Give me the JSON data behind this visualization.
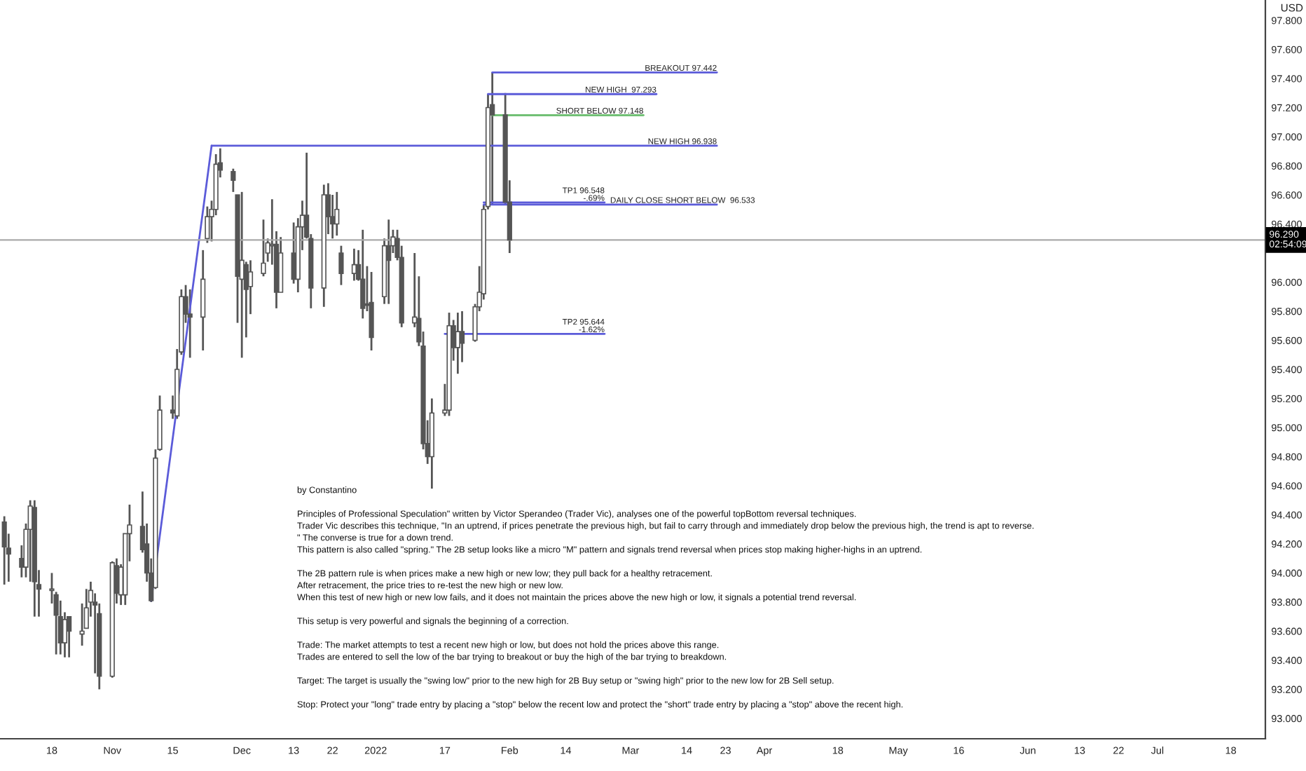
{
  "chart_data": {
    "type": "candlestick",
    "ylabel": "USD",
    "x": [
      "2021-10-07",
      "2021-10-08",
      "2021-10-11",
      "2021-10-12",
      "2021-10-13",
      "2021-10-14",
      "2021-10-15",
      "2021-10-18",
      "2021-10-19",
      "2021-10-20",
      "2021-10-21",
      "2021-10-22",
      "2021-10-25",
      "2021-10-26",
      "2021-10-27",
      "2021-10-28",
      "2021-10-29",
      "2021-11-01",
      "2021-11-02",
      "2021-11-03",
      "2021-11-04",
      "2021-11-05",
      "2021-11-08",
      "2021-11-09",
      "2021-11-10",
      "2021-11-11",
      "2021-11-12",
      "2021-11-15",
      "2021-11-16",
      "2021-11-17",
      "2021-11-18",
      "2021-11-19",
      "2021-11-22",
      "2021-11-23",
      "2021-11-24",
      "2021-11-25",
      "2021-11-26",
      "2021-11-29",
      "2021-11-30",
      "2021-12-01",
      "2021-12-02",
      "2021-12-03",
      "2021-12-06",
      "2021-12-07",
      "2021-12-08",
      "2021-12-09",
      "2021-12-10",
      "2021-12-13",
      "2021-12-14",
      "2021-12-15",
      "2021-12-16",
      "2021-12-17",
      "2021-12-20",
      "2021-12-21",
      "2021-12-22",
      "2021-12-23",
      "2021-12-24",
      "2021-12-27",
      "2021-12-28",
      "2021-12-29",
      "2021-12-30",
      "2021-12-31",
      "2022-01-03",
      "2022-01-04",
      "2022-01-05",
      "2022-01-06",
      "2022-01-07",
      "2022-01-10",
      "2022-01-11",
      "2022-01-12",
      "2022-01-13",
      "2022-01-14",
      "2022-01-17",
      "2022-01-18",
      "2022-01-19",
      "2022-01-20",
      "2022-01-21",
      "2022-01-24",
      "2022-01-25",
      "2022-01-26",
      "2022-01-27",
      "2022-01-28",
      "2022-01-31",
      "2022-02-01"
    ],
    "ohlc": [
      [
        94.35,
        94.39,
        93.92,
        94.18
      ],
      [
        94.17,
        94.27,
        93.94,
        94.13
      ],
      [
        94.1,
        94.19,
        93.97,
        94.04
      ],
      [
        94.04,
        94.34,
        93.97,
        94.3
      ],
      [
        94.3,
        94.5,
        93.94,
        94.46
      ],
      [
        94.45,
        94.5,
        93.7,
        93.94
      ],
      [
        93.92,
        94.02,
        93.7,
        93.89
      ],
      [
        93.88,
        94.0,
        93.79,
        93.89
      ],
      [
        93.85,
        93.87,
        93.44,
        93.71
      ],
      [
        93.7,
        93.81,
        93.44,
        93.52
      ],
      [
        93.52,
        93.73,
        93.42,
        93.68
      ],
      [
        93.7,
        93.7,
        93.42,
        93.6
      ],
      [
        93.58,
        93.79,
        93.5,
        93.6
      ],
      [
        93.62,
        93.89,
        93.62,
        93.76
      ],
      [
        93.8,
        93.94,
        93.7,
        93.88
      ],
      [
        93.8,
        93.86,
        93.31,
        93.78
      ],
      [
        93.72,
        93.79,
        93.2,
        93.29
      ],
      [
        93.29,
        94.08,
        93.28,
        94.07
      ],
      [
        94.05,
        94.1,
        93.79,
        93.86
      ],
      [
        93.85,
        94.06,
        93.78,
        94.04
      ],
      [
        93.85,
        94.27,
        93.78,
        94.27
      ],
      [
        94.27,
        94.47,
        94.08,
        94.33
      ],
      [
        94.32,
        94.56,
        94.14,
        94.16
      ],
      [
        94.2,
        94.34,
        93.94,
        94.0
      ],
      [
        94.0,
        94.1,
        93.8,
        93.81
      ],
      [
        93.9,
        94.85,
        93.89,
        94.79
      ],
      [
        94.85,
        95.22,
        94.84,
        95.12
      ],
      [
        95.12,
        95.22,
        95.06,
        95.1
      ],
      [
        95.08,
        95.54,
        95.06,
        95.4
      ],
      [
        95.52,
        95.95,
        95.5,
        95.9
      ],
      [
        95.9,
        95.98,
        95.72,
        95.78
      ],
      [
        95.78,
        95.95,
        95.48,
        95.76
      ],
      [
        95.76,
        96.22,
        95.53,
        96.02
      ],
      [
        96.3,
        96.52,
        96.27,
        96.45
      ],
      [
        96.45,
        96.56,
        96.28,
        96.5
      ],
      [
        96.5,
        96.88,
        96.46,
        96.81
      ],
      [
        96.82,
        96.92,
        96.72,
        96.77
      ],
      [
        96.76,
        96.78,
        96.62,
        96.7
      ],
      [
        96.6,
        96.6,
        95.72,
        96.04
      ],
      [
        96.02,
        96.62,
        95.48,
        96.15
      ],
      [
        96.12,
        96.14,
        95.62,
        95.95
      ],
      [
        95.97,
        96.15,
        95.78,
        96.07
      ],
      [
        96.06,
        96.43,
        96.04,
        96.13
      ],
      [
        96.2,
        96.3,
        96.14,
        96.27
      ],
      [
        96.25,
        96.57,
        96.12,
        96.26
      ],
      [
        96.26,
        96.35,
        95.82,
        95.93
      ],
      [
        95.93,
        96.31,
        95.93,
        96.2
      ],
      [
        96.2,
        96.41,
        95.99,
        96.02
      ],
      [
        96.02,
        96.44,
        95.93,
        96.38
      ],
      [
        96.38,
        96.56,
        96.22,
        96.46
      ],
      [
        96.46,
        96.89,
        96.3,
        96.31
      ],
      [
        96.3,
        96.33,
        95.82,
        95.96
      ],
      [
        95.96,
        96.67,
        95.83,
        96.6
      ],
      [
        96.6,
        96.68,
        96.33,
        96.45
      ],
      [
        96.45,
        96.6,
        96.3,
        96.4
      ],
      [
        96.4,
        96.62,
        96.32,
        96.5
      ],
      [
        96.2,
        96.25,
        95.98,
        96.06
      ],
      [
        96.06,
        96.23,
        96.01,
        96.12
      ],
      [
        96.12,
        96.22,
        96.01,
        96.02
      ],
      [
        96.02,
        96.36,
        95.75,
        95.82
      ],
      [
        95.85,
        96.11,
        95.8,
        95.84
      ],
      [
        95.86,
        96.07,
        95.53,
        95.62
      ],
      [
        95.9,
        96.3,
        95.85,
        96.25
      ],
      [
        96.25,
        96.43,
        95.85,
        96.15
      ],
      [
        96.25,
        96.36,
        96.2,
        96.31
      ],
      [
        96.3,
        96.36,
        96.15,
        96.17
      ],
      [
        96.17,
        96.25,
        95.69,
        95.72
      ],
      [
        95.72,
        96.2,
        95.69,
        95.76
      ],
      [
        95.75,
        96.04,
        95.56,
        95.59
      ],
      [
        95.56,
        95.66,
        94.85,
        94.89
      ],
      [
        94.89,
        95.05,
        94.75,
        94.8
      ],
      [
        94.8,
        95.2,
        94.58,
        95.1
      ],
      [
        95.1,
        95.3,
        95.08,
        95.12
      ],
      [
        95.12,
        95.79,
        95.08,
        95.7
      ],
      [
        95.7,
        95.74,
        95.46,
        95.55
      ],
      [
        95.55,
        95.79,
        95.37,
        95.66
      ],
      [
        95.66,
        95.8,
        95.45,
        95.58
      ],
      [
        95.6,
        95.85,
        95.59,
        95.83
      ],
      [
        95.83,
        96.11,
        95.8,
        95.93
      ],
      [
        95.92,
        96.53,
        95.88,
        96.5
      ],
      [
        96.52,
        97.29,
        96.5,
        97.2
      ],
      [
        97.22,
        97.442,
        96.53,
        97.15
      ],
      [
        97.15,
        97.3,
        96.53,
        96.55
      ],
      [
        96.55,
        96.7,
        96.2,
        96.29
      ]
    ],
    "color": "#555555",
    "series": [
      {
        "type": "line",
        "color": "#5b5bd9",
        "x": [
          "2021-11-10",
          "2021-11-24"
        ],
        "values": [
          93.81,
          96.938
        ]
      },
      {
        "type": "line",
        "name": "NEW HIGH 96.938",
        "color": "#5b5bd9",
        "x": [
          "2021-11-24",
          "2022-03-21"
        ],
        "values": [
          96.938,
          96.938
        ]
      },
      {
        "type": "line",
        "name": "BREAKOUT 97.442",
        "color": "#5b5bd9",
        "x": [
          "2022-01-28",
          "2022-03-21"
        ],
        "values": [
          97.442,
          97.442
        ]
      },
      {
        "type": "line",
        "name": "NEW HIGH  97.293",
        "color": "#5b5bd9",
        "x": [
          "2022-01-27",
          "2022-03-07"
        ],
        "values": [
          97.293,
          97.293
        ]
      },
      {
        "type": "line",
        "name": "SHORT BELOW 97.148",
        "color": "#66bb6a",
        "x": [
          "2022-01-28",
          "2022-03-04"
        ],
        "values": [
          97.148,
          97.148
        ]
      },
      {
        "type": "line",
        "name": "DAILY CLOSE SHORT BELOW  96.533",
        "color": "#5b5bd9",
        "x": [
          "2022-01-26",
          "2022-03-21"
        ],
        "values": [
          96.533,
          96.533
        ]
      },
      {
        "type": "line",
        "name": "TP1 96.548\n-.69%",
        "color": "#5b5bd9",
        "x": [
          "2022-01-26",
          "2022-02-23"
        ],
        "values": [
          96.548,
          96.548
        ]
      },
      {
        "type": "line",
        "name": "TP2 95.644\n-1.62%",
        "color": "#5b5bd9",
        "x": [
          "2022-01-17",
          "2022-02-23"
        ],
        "values": [
          95.644,
          95.644
        ]
      }
    ],
    "ref_lines": [
      {
        "axis": "y",
        "value": 96.29,
        "label": "96.290\n02:54:09",
        "color": "#aaaaaa"
      }
    ],
    "xlim": [
      "2021-10-06",
      "2022-07-26"
    ],
    "xticks": [
      {
        "value": "2021-10-18",
        "label": "18"
      },
      {
        "value": "2021-11-01",
        "label": "Nov"
      },
      {
        "value": "2021-11-15",
        "label": "15"
      },
      {
        "value": "2021-12-01",
        "label": "Dec"
      },
      {
        "value": "2021-12-13",
        "label": "13"
      },
      {
        "value": "2021-12-22",
        "label": "22"
      },
      {
        "value": "2022-01-01",
        "label": "2022"
      },
      {
        "value": "2022-01-17",
        "label": "17"
      },
      {
        "value": "2022-02-01",
        "label": "Feb"
      },
      {
        "value": "2022-02-14",
        "label": "14"
      },
      {
        "value": "2022-03-01",
        "label": "Mar"
      },
      {
        "value": "2022-03-14",
        "label": "14"
      },
      {
        "value": "2022-03-23",
        "label": "23"
      },
      {
        "value": "2022-04-01",
        "label": "Apr"
      },
      {
        "value": "2022-04-18",
        "label": "18"
      },
      {
        "value": "2022-05-02",
        "label": "May"
      },
      {
        "value": "2022-05-16",
        "label": "16"
      },
      {
        "value": "2022-06-01",
        "label": "Jun"
      },
      {
        "value": "2022-06-13",
        "label": "13"
      },
      {
        "value": "2022-06-22",
        "label": "22"
      },
      {
        "value": "2022-07-01",
        "label": "Jul"
      },
      {
        "value": "2022-07-18",
        "label": "18"
      }
    ],
    "ylim": [
      92.86,
      97.94
    ],
    "yticks": [
      {
        "value": 93,
        "label": "93.000"
      },
      {
        "value": 93.2,
        "label": "93.200"
      },
      {
        "value": 93.4,
        "label": "93.400"
      },
      {
        "value": 93.6,
        "label": "93.600"
      },
      {
        "value": 93.8,
        "label": "93.800"
      },
      {
        "value": 94,
        "label": "94.000"
      },
      {
        "value": 94.2,
        "label": "94.200"
      },
      {
        "value": 94.4,
        "label": "94.400"
      },
      {
        "value": 94.6,
        "label": "94.600"
      },
      {
        "value": 94.8,
        "label": "94.800"
      },
      {
        "value": 95,
        "label": "95.000"
      },
      {
        "value": 95.2,
        "label": "95.200"
      },
      {
        "value": 95.4,
        "label": "95.400"
      },
      {
        "value": 95.6,
        "label": "95.600"
      },
      {
        "value": 95.8,
        "label": "95.800"
      },
      {
        "value": 96,
        "label": "96.000"
      },
      {
        "value": 96.4,
        "label": "96.400"
      },
      {
        "value": 96.6,
        "label": "96.600"
      },
      {
        "value": 96.8,
        "label": "96.800"
      },
      {
        "value": 97,
        "label": "97.000"
      },
      {
        "value": 97.2,
        "label": "97.200"
      },
      {
        "value": 97.4,
        "label": "97.400"
      },
      {
        "value": 97.6,
        "label": "97.600"
      },
      {
        "value": 97.8,
        "label": "97.800"
      }
    ],
    "annotations": [
      "by Constantino",
      "Principles of Professional Speculation\" written by Victor Sperandeo (Trader Vic), analyses one of the powerful topBottom reversal techniques.\nTrader Vic describes this technique, \"In an uptrend, if prices penetrate the previous high, but fail to carry through and immediately drop below the previous high, the trend is apt to reverse.\n\" The converse is true for a down trend.\nThis pattern is also called \"spring.\" The 2B setup looks like a micro \"M\" pattern and signals trend reversal when prices stop making higher-highs in an uptrend.",
      "The 2B pattern rule is when prices make a new high or new low; they pull back for a healthy retracement.\nAfter retracement, the price tries to re-test the new high or new low.\nWhen this test of new high or new low fails, and it does not maintain the prices above the new high or low, it signals a potential trend reversal.",
      "This setup is very powerful and signals the beginning of a correction.",
      "Trade: The market attempts to test a recent new high or low, but does not hold the prices above this range.\nTrades are entered to sell the low of the bar trying to breakout or buy the high of the bar trying to breakdown.",
      "Target: The target is usually the \"swing low\" prior to the new high for 2B Buy setup or \"swing high\" prior to the new low for 2B Sell setup.",
      "Stop: Protect your \"long\" trade entry by placing a \"stop\" below the recent low and protect the \"short\" trade entry by placing a \"stop\" above the recent high."
    ]
  }
}
